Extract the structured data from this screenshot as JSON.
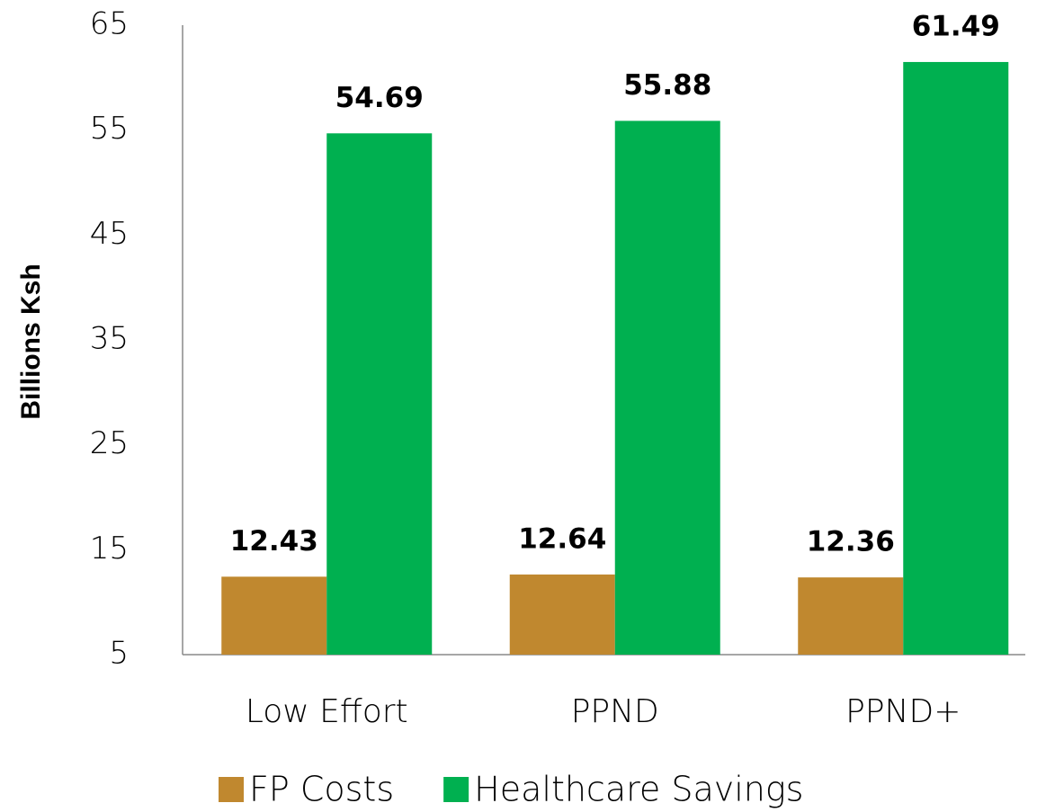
{
  "chart_data": {
    "type": "bar",
    "y_label": "Billions Ksh",
    "categories": [
      "Low Effort",
      "PPND",
      "PPND+"
    ],
    "series": [
      {
        "name": "FP Costs",
        "color": "#C0882F",
        "values": [
          12.43,
          12.64,
          12.36
        ]
      },
      {
        "name": "Healthcare Savings",
        "color": "#00B050",
        "values": [
          54.69,
          55.88,
          61.49
        ]
      }
    ],
    "ylim": [
      5,
      65
    ],
    "yticks": [
      5,
      15,
      25,
      35,
      45,
      55,
      65
    ],
    "grid": false,
    "legend": "bottom"
  }
}
